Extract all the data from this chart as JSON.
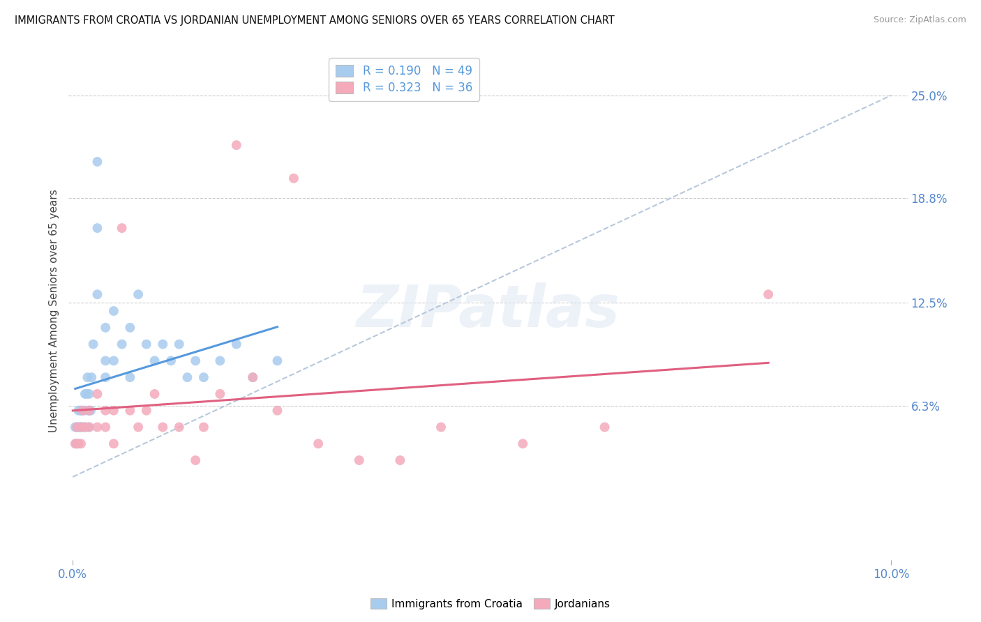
{
  "title": "IMMIGRANTS FROM CROATIA VS JORDANIAN UNEMPLOYMENT AMONG SENIORS OVER 65 YEARS CORRELATION CHART",
  "source": "Source: ZipAtlas.com",
  "ylabel": "Unemployment Among Seniors over 65 years",
  "xlim": [
    -0.0005,
    0.102
  ],
  "ylim": [
    -0.03,
    0.27
  ],
  "ytick_vals": [
    0.063,
    0.125,
    0.188,
    0.25
  ],
  "ytick_labels": [
    "6.3%",
    "12.5%",
    "18.8%",
    "25.0%"
  ],
  "xticks": [
    0.0,
    0.1
  ],
  "xtick_labels": [
    "0.0%",
    "10.0%"
  ],
  "R_croatia": 0.19,
  "N_croatia": 49,
  "R_jordanian": 0.323,
  "N_jordanian": 36,
  "croatia_color": "#a8ccee",
  "jordanian_color": "#f4aabb",
  "croatia_line_color": "#5599dd",
  "jordanian_line_color": "#e06080",
  "dashed_color": "#b8c8dc",
  "watermark_text": "ZIPatlas",
  "croatia_x": [
    0.0003,
    0.0004,
    0.0005,
    0.0005,
    0.0006,
    0.0007,
    0.0008,
    0.0009,
    0.001,
    0.001,
    0.001,
    0.0012,
    0.0013,
    0.0014,
    0.0015,
    0.0016,
    0.0017,
    0.0018,
    0.0019,
    0.002,
    0.002,
    0.002,
    0.0022,
    0.0023,
    0.0025,
    0.003,
    0.003,
    0.003,
    0.004,
    0.004,
    0.004,
    0.005,
    0.005,
    0.006,
    0.007,
    0.007,
    0.008,
    0.009,
    0.01,
    0.011,
    0.012,
    0.013,
    0.014,
    0.015,
    0.016,
    0.018,
    0.02,
    0.022,
    0.025
  ],
  "croatia_y": [
    0.05,
    0.04,
    0.05,
    0.04,
    0.05,
    0.06,
    0.05,
    0.05,
    0.06,
    0.05,
    0.06,
    0.05,
    0.05,
    0.06,
    0.07,
    0.05,
    0.07,
    0.08,
    0.06,
    0.06,
    0.07,
    0.05,
    0.06,
    0.08,
    0.1,
    0.21,
    0.17,
    0.13,
    0.08,
    0.09,
    0.11,
    0.09,
    0.12,
    0.1,
    0.11,
    0.08,
    0.13,
    0.1,
    0.09,
    0.1,
    0.09,
    0.1,
    0.08,
    0.09,
    0.08,
    0.09,
    0.1,
    0.08,
    0.09
  ],
  "jordanian_x": [
    0.0003,
    0.0005,
    0.0007,
    0.001,
    0.001,
    0.0012,
    0.0015,
    0.002,
    0.002,
    0.003,
    0.003,
    0.004,
    0.004,
    0.005,
    0.005,
    0.006,
    0.007,
    0.008,
    0.009,
    0.01,
    0.011,
    0.013,
    0.015,
    0.016,
    0.018,
    0.02,
    0.022,
    0.025,
    0.027,
    0.03,
    0.035,
    0.04,
    0.045,
    0.055,
    0.065,
    0.085
  ],
  "jordanian_y": [
    0.04,
    0.05,
    0.04,
    0.05,
    0.04,
    0.06,
    0.05,
    0.05,
    0.06,
    0.05,
    0.07,
    0.06,
    0.05,
    0.06,
    0.04,
    0.17,
    0.06,
    0.05,
    0.06,
    0.07,
    0.05,
    0.05,
    0.03,
    0.05,
    0.07,
    0.22,
    0.08,
    0.06,
    0.2,
    0.04,
    0.03,
    0.03,
    0.05,
    0.04,
    0.05,
    0.13
  ]
}
